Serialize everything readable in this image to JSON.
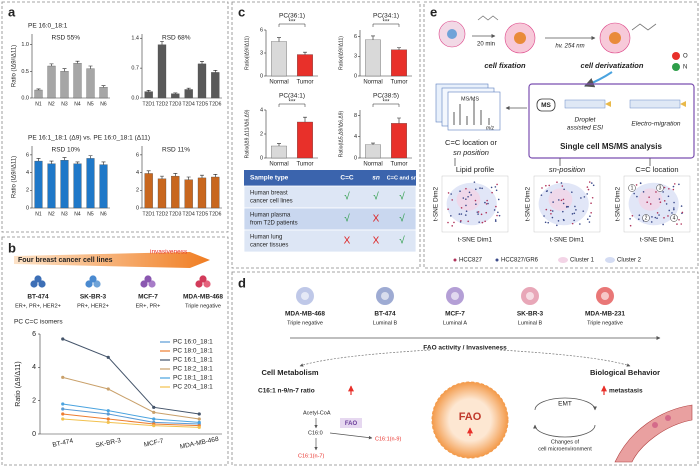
{
  "panel_labels": [
    "a",
    "b",
    "c",
    "d",
    "e"
  ],
  "a": {
    "charts": [
      {
        "type": "bar",
        "title": "PE 16:0_18:1",
        "annotation": "RSD 55%",
        "ylabel": "Ratio (IΔ9/IΔ11)",
        "categories": [
          "N1",
          "N2",
          "N3",
          "N4",
          "N5",
          "N6"
        ],
        "values": [
          0.15,
          0.6,
          0.5,
          0.65,
          0.55,
          0.2
        ],
        "errors": [
          0.02,
          0.04,
          0.05,
          0.04,
          0.05,
          0.03
        ],
        "color": "#a6a6a6",
        "ylim": [
          0,
          1.2
        ],
        "yticks": [
          {
            "value": 0,
            "label": "0.0"
          },
          0.5,
          {
            "value": 1,
            "label": "1.0"
          }
        ]
      },
      {
        "type": "bar",
        "annotation": "RSD 68%",
        "categories": [
          "T2D1",
          "T2D2",
          "T2D3",
          "T2D4",
          "T2D5",
          "T2D6"
        ],
        "values": [
          0.15,
          1.25,
          0.1,
          0.2,
          0.8,
          0.6
        ],
        "errors": [
          0.03,
          0.08,
          0.02,
          0.03,
          0.06,
          0.05
        ],
        "color": "#595959",
        "ylim": [
          0,
          1.5
        ],
        "yticks": [
          {
            "value": 0,
            "label": "0.0"
          },
          0.7,
          1.4
        ]
      },
      {
        "type": "bar",
        "title": "PE 16:1_18:1 (Δ9) vs. PE 16:0_18:1 (Δ11)",
        "annotation": "RSD 10%",
        "ylabel": "Ratio (IΔ9/IΔ11)",
        "categories": [
          "N1",
          "N2",
          "N3",
          "N4",
          "N5",
          "N6"
        ],
        "values": [
          5.3,
          5.0,
          5.4,
          5.0,
          5.6,
          4.9
        ],
        "errors": [
          0.3,
          0.3,
          0.3,
          0.2,
          0.3,
          0.3
        ],
        "color": "#1f78c8",
        "ylim": [
          0,
          7
        ],
        "yticks": [
          0,
          2,
          4,
          6
        ]
      },
      {
        "type": "bar",
        "annotation": "RSD 11%",
        "categories": [
          "T2D1",
          "T2D2",
          "T2D3",
          "T2D4",
          "T2D5",
          "T2D6"
        ],
        "values": [
          3.9,
          3.3,
          3.6,
          3.2,
          3.4,
          3.5
        ],
        "errors": [
          0.3,
          0.3,
          0.3,
          0.3,
          0.3,
          0.3
        ],
        "color": "#c8671f",
        "ylim": [
          0,
          7
        ],
        "yticks": [
          0,
          2,
          4,
          6
        ]
      }
    ]
  },
  "b": {
    "banner": "Four breast cancer cell lines",
    "arrow_label": "invasiveness",
    "cells": [
      {
        "name": "BT-474",
        "subtype": "ER+, PR+, HER2+"
      },
      {
        "name": "SK-BR-3",
        "subtype": "PR+, HER2+"
      },
      {
        "name": "MCF-7",
        "subtype": "ER+, PR+"
      },
      {
        "name": "MDA-MB-468",
        "subtype": "Triple negative"
      }
    ],
    "subtitle": "PC C=C isomers",
    "chart": {
      "type": "line",
      "ylabel": "Ratio (Δ9/Δ11)",
      "categories": [
        "BT-474",
        "SK-BR-3",
        "MCF-7",
        "MDA-MB-468"
      ],
      "ylim": [
        0,
        6
      ],
      "yticks": [
        0,
        2,
        4,
        6
      ],
      "series": [
        {
          "name": "PC 16:0_18:1",
          "color": "#5b9bd5",
          "values": [
            1.5,
            1.2,
            0.7,
            0.6
          ]
        },
        {
          "name": "PC 18:0_18:1",
          "color": "#ed7d31",
          "values": [
            1.2,
            0.9,
            0.6,
            0.5
          ]
        },
        {
          "name": "PC 16:1_18:1",
          "color": "#44546a",
          "values": [
            5.7,
            4.6,
            1.6,
            1.2
          ]
        },
        {
          "name": "PC 18:2_18:1",
          "color": "#c9a06a",
          "values": [
            3.4,
            2.7,
            1.3,
            0.9
          ]
        },
        {
          "name": "PC 18:1_18:1",
          "color": "#4aa3df",
          "values": [
            1.8,
            1.4,
            0.9,
            0.7
          ]
        },
        {
          "name": "PC 20:4_18:1",
          "color": "#f2c14e",
          "values": [
            0.9,
            0.7,
            0.5,
            0.4
          ]
        }
      ]
    }
  },
  "c": {
    "charts": [
      {
        "type": "bar",
        "title": "PC(36:1)",
        "significance": "***",
        "ylabel": "Ratio(IΔ9/IΔ11)",
        "categories": [
          "Normal",
          "Tumor"
        ],
        "values": [
          4.5,
          2.8
        ],
        "errors": [
          0.5,
          0.3
        ],
        "colors": [
          "#d9d9d9",
          "#e8302a"
        ],
        "ylim": [
          0,
          6
        ],
        "yticks": [
          0,
          3,
          6
        ]
      },
      {
        "type": "bar",
        "title": "PC(34:1)",
        "significance": "***",
        "ylabel": "Ratio(IΔ9/IΔ11)",
        "categories": [
          "Normal",
          "Tumor"
        ],
        "values": [
          5.5,
          4.0
        ],
        "errors": [
          0.6,
          0.3
        ],
        "colors": [
          "#d9d9d9",
          "#e8302a"
        ],
        "ylim": [
          0,
          7
        ],
        "yticks": [
          0,
          3,
          6
        ]
      },
      {
        "type": "bar",
        "title": "PC(34:1)",
        "significance": "***",
        "ylabel": "Ratio(IΔ9,Δ11/IΔ6,Δ9)",
        "categories": [
          "Normal",
          "Tumor"
        ],
        "values": [
          1.0,
          3.0
        ],
        "errors": [
          0.2,
          0.4
        ],
        "colors": [
          "#d9d9d9",
          "#e8302a"
        ],
        "ylim": [
          0,
          4
        ],
        "yticks": [
          0,
          2,
          4
        ]
      },
      {
        "type": "bar",
        "title": "PC(38:5)",
        "significance": "***",
        "ylabel": "Ratio(IΔ5,Δ8/IΔ6,Δ9)",
        "categories": [
          "Normal",
          "Tumor"
        ],
        "values": [
          2.5,
          6.5
        ],
        "errors": [
          0.3,
          1.0
        ],
        "colors": [
          "#d9d9d9",
          "#e8302a"
        ],
        "ylim": [
          0,
          9
        ],
        "yticks": [
          0,
          4,
          8
        ]
      }
    ],
    "table": {
      "header": [
        "Sample type",
        "C=C",
        "sn",
        "C=C and sn"
      ],
      "rows": [
        [
          [
            "Human breast",
            "cancer cell lines"
          ],
          "√",
          "√",
          "√"
        ],
        [
          [
            "Human plasma",
            "from T2D patients"
          ],
          "√",
          "X",
          "√"
        ],
        [
          [
            "Human lung",
            "cancer tissues"
          ],
          "X",
          "X",
          "√"
        ]
      ]
    }
  },
  "d": {
    "cells": [
      {
        "name": "MDA-MB-468",
        "subtype": "Triple negative"
      },
      {
        "name": "BT-474",
        "subtype": "Luminal B"
      },
      {
        "name": "MCF-7",
        "subtype": "Luminal A"
      },
      {
        "name": "SK-BR-3",
        "subtype": "Luminal B"
      },
      {
        "name": "MDA-MB-231",
        "subtype": "Triple negative"
      }
    ],
    "axis_label": "FAO activity / Invasiveness",
    "left_title": "Cell Metabolism",
    "right_title": "Biological Behavior",
    "ratio_label": "C16:1 n-9/n-7 ratio",
    "metastasis": "metastasis",
    "acetyl": "Acetyl-CoA",
    "c160": "C16:0",
    "fao_box": "FAO",
    "n9": "C16:1(n-9)",
    "n7": "C16:1(n-7)",
    "fao_center": "FAO",
    "emt": "EMT",
    "micro": [
      "Changes of",
      "cell microenvironment"
    ]
  },
  "e": {
    "time": "20 min",
    "uv": "hv. 254 nm",
    "step1": "cell fixation",
    "step2": "cell derivatization",
    "atoms": [
      "O",
      "N"
    ],
    "msms": "MS/MS",
    "mz": "m/z",
    "result": [
      "C=C location or",
      "sn position"
    ],
    "ms": "MS",
    "esi": [
      "Droplet",
      "assisted ESI"
    ],
    "migration": "Electro-migration",
    "analysis": "Single cell MS/MS analysis",
    "plots": [
      {
        "title": "Lipid profile",
        "xlabel": "t-SNE Dim1",
        "ylabel": "t-SNE Dim2"
      },
      {
        "title": "sn-position",
        "xlabel": "t-SNE Dim1",
        "ylabel": "t-SNE Dim2"
      },
      {
        "title": "C=C location",
        "xlabel": "t-SNE Dim1",
        "ylabel": "t-SNE Dim2",
        "callouts": [
          "1",
          "2",
          "3",
          "4"
        ]
      }
    ],
    "legend": [
      "HCC827",
      "HCC827/GR6",
      "Cluster 1",
      "Cluster 2"
    ]
  }
}
